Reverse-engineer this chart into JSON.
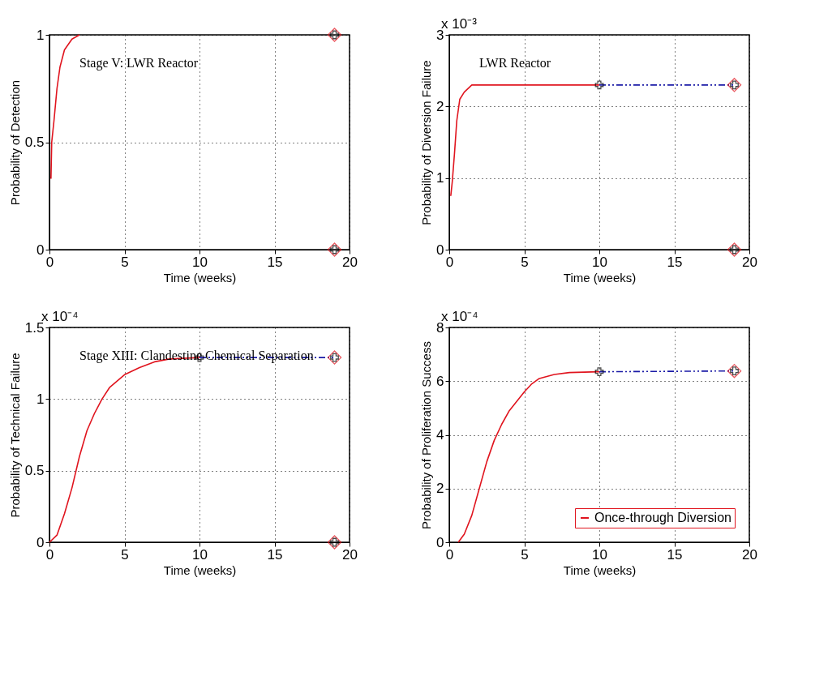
{
  "chart_data": [
    {
      "type": "line",
      "xlabel": "Time (weeks)",
      "ylabel": "Probability of Detection",
      "xlim": [
        0,
        20
      ],
      "xticks": [
        0,
        5,
        10,
        15,
        20
      ],
      "ylim": [
        0,
        1
      ],
      "yticks": [
        0,
        0.5,
        1
      ],
      "grid": true,
      "series": [
        {
          "color": "#e0141e",
          "line_style": "solid",
          "x": [
            0.1,
            0.15,
            0.3,
            0.5,
            0.7,
            1,
            1.5,
            2
          ],
          "values": [
            0.33,
            0.5,
            0.6,
            0.75,
            0.85,
            0.93,
            0.98,
            1
          ]
        },
        {
          "type": "scatter",
          "marker": "diamond",
          "color": "#e0141e",
          "x": [
            19,
            19
          ],
          "values": [
            1,
            0
          ]
        },
        {
          "type": "scatter",
          "marker": "cross",
          "color": "#000000",
          "x": [
            19,
            19
          ],
          "values": [
            1,
            0
          ]
        }
      ],
      "annotations": [
        "Stage V: LWR Reactor"
      ]
    },
    {
      "type": "line",
      "xlabel": "Time (weeks)",
      "ylabel": "Probability of Diversion Failure",
      "xlim": [
        0,
        20
      ],
      "xticks": [
        0,
        5,
        10,
        15,
        20
      ],
      "ylim": [
        0,
        3
      ],
      "yticks": [
        0,
        1,
        2,
        3
      ],
      "grid": true,
      "series": [
        {
          "color": "#e0141e",
          "line_style": "solid",
          "x": [
            0.1,
            0.2,
            0.35,
            0.5,
            0.7,
            1,
            1.5,
            10
          ],
          "values": [
            0.75,
            0.95,
            1.35,
            1.8,
            2.1,
            2.2,
            2.3,
            2.3
          ]
        },
        {
          "color": "#1a1aa6",
          "line_style": "dashed",
          "x": [
            10,
            19
          ],
          "values": [
            2.3,
            2.3
          ]
        },
        {
          "type": "scatter",
          "marker": "diamond",
          "color": "#e0141e",
          "x": [
            19,
            19
          ],
          "values": [
            2.3,
            0
          ]
        },
        {
          "type": "scatter",
          "marker": "cross",
          "color": "#000000",
          "x": [
            10,
            19,
            19
          ],
          "values": [
            2.3,
            2.3,
            0
          ]
        }
      ],
      "subtitle": "x 10⁻³",
      "annotations": [
        "LWR Reactor"
      ]
    },
    {
      "type": "line",
      "xlabel": "Time (weeks)",
      "ylabel": "Probability of Technical Failure",
      "xlim": [
        0,
        20
      ],
      "xticks": [
        0,
        5,
        10,
        15,
        20
      ],
      "ylim": [
        0,
        1.5
      ],
      "yticks": [
        0,
        0.5,
        1,
        1.5
      ],
      "grid": true,
      "series": [
        {
          "color": "#e0141e",
          "line_style": "solid",
          "x": [
            0,
            0.5,
            1,
            1.5,
            2,
            2.5,
            3,
            3.5,
            4,
            5,
            6,
            7,
            8,
            10
          ],
          "values": [
            0,
            0.05,
            0.2,
            0.38,
            0.6,
            0.78,
            0.9,
            1.0,
            1.08,
            1.17,
            1.22,
            1.26,
            1.28,
            1.29
          ]
        },
        {
          "color": "#1a1aa6",
          "line_style": "dashed",
          "x": [
            10,
            19
          ],
          "values": [
            1.29,
            1.29
          ]
        },
        {
          "type": "scatter",
          "marker": "diamond",
          "color": "#e0141e",
          "x": [
            19,
            19
          ],
          "values": [
            1.29,
            0
          ]
        },
        {
          "type": "scatter",
          "marker": "cross",
          "color": "#000000",
          "x": [
            10,
            19,
            19
          ],
          "values": [
            1.29,
            1.29,
            0
          ]
        }
      ],
      "subtitle": "x 10⁻⁴",
      "annotations": [
        "Stage XIII: Clandestine Chemical Separation"
      ]
    },
    {
      "type": "line",
      "xlabel": "Time (weeks)",
      "ylabel": "Probability of Proliferation Success",
      "xlim": [
        0,
        20
      ],
      "xticks": [
        0,
        5,
        10,
        15,
        20
      ],
      "ylim": [
        0,
        8
      ],
      "yticks": [
        0,
        2,
        4,
        6,
        8
      ],
      "grid": true,
      "legend": "bottom right",
      "series": [
        {
          "name": "Once-through Diversion",
          "color": "#e0141e",
          "line_style": "solid",
          "x": [
            0.6,
            1,
            1.5,
            2,
            2.5,
            3,
            3.5,
            4,
            5,
            5.5,
            6,
            7,
            8,
            10
          ],
          "values": [
            0,
            0.3,
            1.0,
            2.0,
            3.0,
            3.8,
            4.4,
            4.9,
            5.6,
            5.9,
            6.1,
            6.25,
            6.32,
            6.35
          ]
        },
        {
          "color": "#1a1aa6",
          "line_style": "dashed",
          "x": [
            10,
            19
          ],
          "values": [
            6.35,
            6.38
          ]
        },
        {
          "type": "scatter",
          "marker": "diamond",
          "color": "#e0141e",
          "x": [
            19
          ],
          "values": [
            6.38
          ]
        },
        {
          "type": "scatter",
          "marker": "cross",
          "color": "#000000",
          "x": [
            10,
            19
          ],
          "values": [
            6.35,
            6.38
          ]
        }
      ],
      "subtitle": "x 10⁻⁴"
    }
  ]
}
